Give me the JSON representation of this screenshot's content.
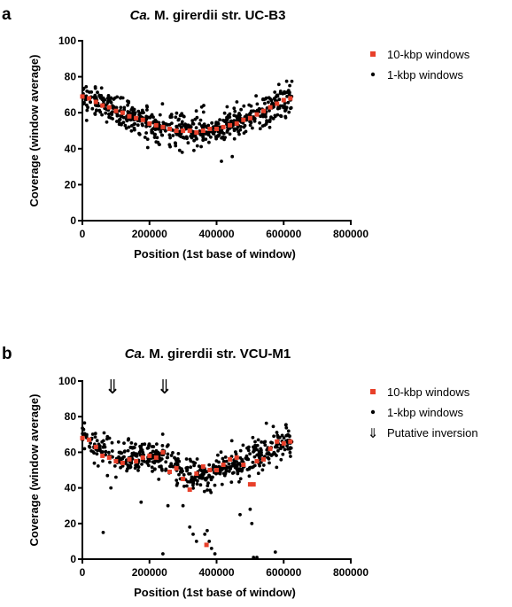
{
  "chart_data": [
    {
      "type": "scatter",
      "panel": "a",
      "title_italic": "Ca.",
      "title_rest": " M. girerdii str. UC-B3",
      "xlabel": "Position (1st base of window)",
      "ylabel": "Coverage (window average)",
      "xlim": [
        0,
        800000
      ],
      "ylim": [
        0,
        100
      ],
      "xticks": [
        "0",
        "200000",
        "400000",
        "600000",
        "800000"
      ],
      "yticks": [
        "0",
        "20",
        "40",
        "60",
        "80",
        "100"
      ],
      "legend_position": "top-right",
      "series": [
        {
          "name": "10-kbp windows",
          "marker": "square",
          "color": "#e8402a",
          "x": [
            0,
            20000,
            40000,
            60000,
            80000,
            100000,
            120000,
            140000,
            160000,
            180000,
            200000,
            220000,
            240000,
            260000,
            280000,
            300000,
            320000,
            340000,
            360000,
            380000,
            400000,
            420000,
            440000,
            460000,
            480000,
            500000,
            520000,
            540000,
            560000,
            580000,
            600000,
            620000
          ],
          "y": [
            69,
            68,
            66,
            64,
            63,
            61,
            60,
            58,
            57,
            56,
            54,
            53,
            52,
            51,
            50,
            50,
            50,
            49,
            50,
            51,
            51,
            52,
            53,
            54,
            56,
            57,
            59,
            61,
            63,
            65,
            67,
            68
          ]
        },
        {
          "name": "1-kbp windows",
          "marker": "dot",
          "color": "#000000",
          "curve": [
            [
              0,
              69
            ],
            [
              100000,
              62
            ],
            [
              200000,
              54
            ],
            [
              300000,
              50
            ],
            [
              400000,
              51
            ],
            [
              500000,
              57
            ],
            [
              620000,
              68
            ]
          ],
          "x_range": [
            0,
            625000
          ],
          "count": 620,
          "spread": 6,
          "outliers": []
        }
      ]
    },
    {
      "type": "scatter",
      "panel": "b",
      "title_italic": "Ca.",
      "title_rest": " M. girerdii str. VCU-M1",
      "xlabel": "Position (1st base of window)",
      "ylabel": "Coverage (window average)",
      "xlim": [
        0,
        800000
      ],
      "ylim": [
        0,
        100
      ],
      "xticks": [
        "0",
        "200000",
        "400000",
        "600000",
        "800000"
      ],
      "yticks": [
        "0",
        "20",
        "40",
        "60",
        "80",
        "100"
      ],
      "legend_position": "top-right",
      "annotations": [
        {
          "symbol": "⇓",
          "x": 90000,
          "y": 97
        },
        {
          "symbol": "⇓",
          "x": 245000,
          "y": 97
        }
      ],
      "series": [
        {
          "name": "10-kbp windows",
          "marker": "square",
          "color": "#e8402a",
          "x": [
            0,
            20000,
            40000,
            60000,
            80000,
            100000,
            120000,
            140000,
            160000,
            180000,
            200000,
            220000,
            240000,
            260000,
            280000,
            300000,
            320000,
            340000,
            360000,
            370000,
            380000,
            400000,
            420000,
            440000,
            460000,
            480000,
            500000,
            510000,
            520000,
            540000,
            560000,
            580000,
            600000,
            620000
          ],
          "y": [
            68,
            67,
            63,
            58,
            57,
            55,
            54,
            56,
            55,
            57,
            58,
            57,
            60,
            49,
            51,
            45,
            39,
            48,
            52,
            8,
            50,
            50,
            53,
            56,
            57,
            53,
            42,
            42,
            55,
            56,
            62,
            66,
            65,
            66
          ]
        },
        {
          "name": "1-kbp windows",
          "marker": "dot",
          "color": "#000000",
          "curve": [
            [
              0,
              68
            ],
            [
              100000,
              57
            ],
            [
              200000,
              57
            ],
            [
              250000,
              56
            ],
            [
              330000,
              46
            ],
            [
              400000,
              50
            ],
            [
              500000,
              56
            ],
            [
              620000,
              67
            ]
          ],
          "x_range": [
            0,
            625000
          ],
          "count": 560,
          "spread": 6,
          "outliers": [
            [
              62000,
              15
            ],
            [
              85000,
              40
            ],
            [
              175000,
              32
            ],
            [
              240000,
              3
            ],
            [
              300000,
              30
            ],
            [
              320000,
              18
            ],
            [
              330000,
              14
            ],
            [
              340000,
              10
            ],
            [
              365000,
              14
            ],
            [
              372000,
              16
            ],
            [
              378000,
              10
            ],
            [
              385000,
              6
            ],
            [
              395000,
              3
            ],
            [
              470000,
              25
            ],
            [
              500000,
              28
            ],
            [
              505000,
              20
            ],
            [
              510000,
              1
            ],
            [
              520000,
              1
            ],
            [
              575000,
              4
            ],
            [
              255000,
              30
            ]
          ]
        },
        {
          "name": "Putative inversion",
          "marker": "arrow",
          "color": "#000000"
        }
      ]
    }
  ]
}
